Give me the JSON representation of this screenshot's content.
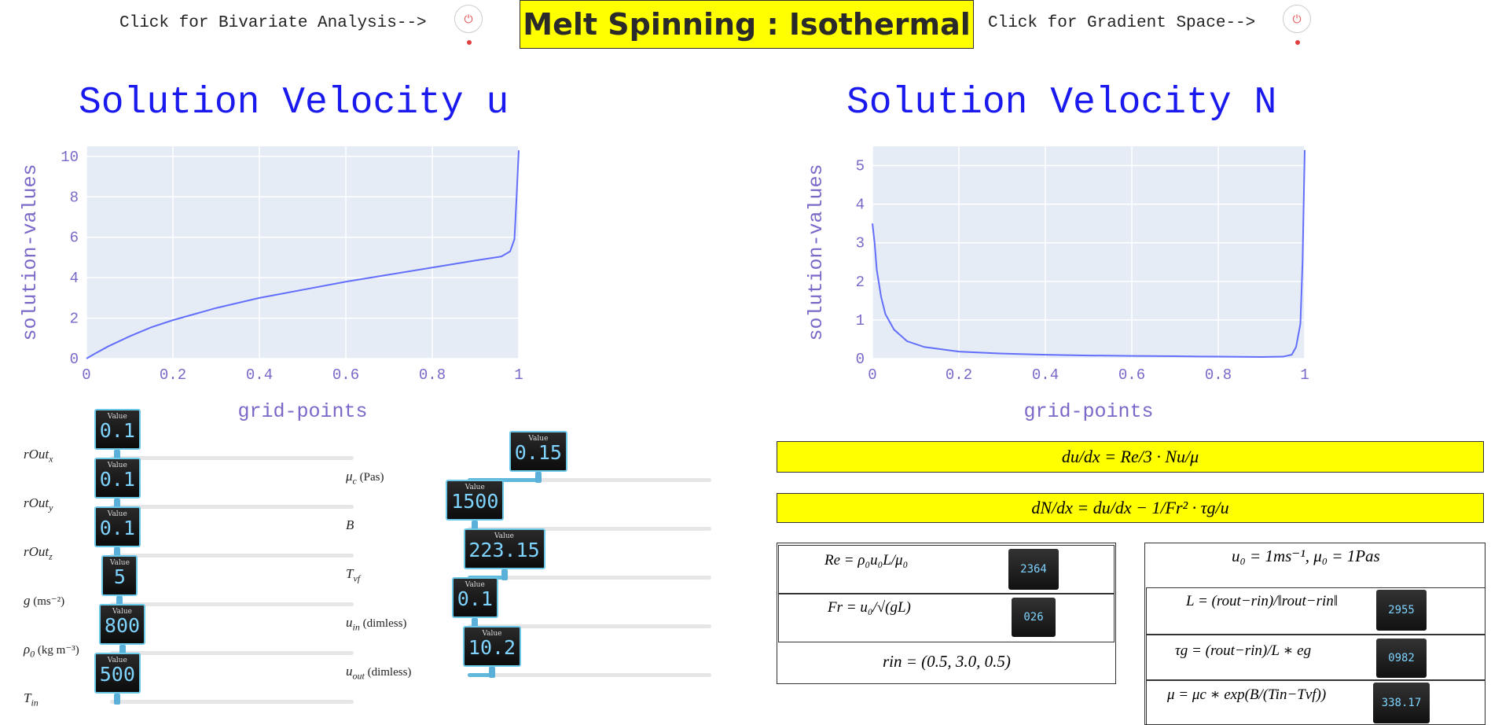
{
  "header": {
    "bivariate_label": "Click for Bivariate Analysis-->",
    "gradient_label": "Click for Gradient Space-->",
    "title": "Melt Spinning : Isothermal",
    "power_glyph": "⏻"
  },
  "charts": {
    "left": {
      "title": "Solution Velocity u",
      "xlabel": "grid-points",
      "ylabel": "solution-values",
      "xticks": [
        "0",
        "0.2",
        "0.4",
        "0.6",
        "0.8",
        "1"
      ],
      "yticks": [
        "0",
        "2",
        "4",
        "6",
        "8",
        "10"
      ]
    },
    "right": {
      "title": "Solution Velocity N",
      "xlabel": "grid-points",
      "ylabel": "solution-values",
      "xticks": [
        "0",
        "0.2",
        "0.4",
        "0.6",
        "0.8",
        "1"
      ],
      "yticks": [
        "0",
        "1",
        "2",
        "3",
        "4",
        "5"
      ]
    }
  },
  "chart_data": [
    {
      "type": "line",
      "title": "Solution Velocity u",
      "xlabel": "grid-points",
      "ylabel": "solution-values",
      "xlim": [
        0,
        1
      ],
      "ylim": [
        0,
        10.5
      ],
      "grid": true,
      "color": "#636efa",
      "x": [
        0,
        0.02,
        0.05,
        0.1,
        0.15,
        0.2,
        0.3,
        0.4,
        0.5,
        0.6,
        0.7,
        0.8,
        0.9,
        0.96,
        0.98,
        0.99,
        0.995,
        1.0
      ],
      "y": [
        0,
        0.25,
        0.6,
        1.1,
        1.55,
        1.9,
        2.5,
        3.0,
        3.4,
        3.8,
        4.15,
        4.5,
        4.85,
        5.05,
        5.3,
        5.9,
        8.0,
        10.3
      ]
    },
    {
      "type": "line",
      "title": "Solution Velocity N",
      "xlabel": "grid-points",
      "ylabel": "solution-values",
      "xlim": [
        0,
        1
      ],
      "ylim": [
        0,
        5.5
      ],
      "grid": true,
      "color": "#636efa",
      "x": [
        0,
        0.005,
        0.01,
        0.02,
        0.03,
        0.05,
        0.08,
        0.12,
        0.2,
        0.3,
        0.4,
        0.5,
        0.6,
        0.7,
        0.8,
        0.9,
        0.95,
        0.97,
        0.98,
        0.99,
        0.995,
        1.0
      ],
      "y": [
        3.5,
        3.0,
        2.3,
        1.6,
        1.15,
        0.75,
        0.45,
        0.3,
        0.18,
        0.13,
        0.1,
        0.08,
        0.07,
        0.06,
        0.05,
        0.04,
        0.05,
        0.1,
        0.3,
        0.9,
        2.5,
        5.4
      ]
    }
  ],
  "sliders_left": [
    {
      "label": "rOut",
      "sub": "x",
      "unit": "",
      "value": "0.1",
      "fraction": 0.03
    },
    {
      "label": "rOut",
      "sub": "y",
      "unit": "",
      "value": "0.1",
      "fraction": 0.03
    },
    {
      "label": "rOut",
      "sub": "z",
      "unit": "",
      "value": "0.1",
      "fraction": 0.03
    },
    {
      "label": "g",
      "sub": "",
      "unit": "(ms⁻²)",
      "value": "5",
      "fraction": 0.04
    },
    {
      "label": "ρ",
      "sub": "0",
      "unit": "(kg m⁻³)",
      "value": "800",
      "fraction": 0.05
    },
    {
      "label": "T",
      "sub": "in",
      "unit": "",
      "value": "500",
      "fraction": 0.03
    }
  ],
  "sliders_right": [
    {
      "label": "μ",
      "sub": "c",
      "unit": "(Pas)",
      "value": "0.15",
      "fraction": 0.29
    },
    {
      "label": "B",
      "sub": "",
      "unit": "",
      "value": "1500",
      "fraction": 0.03
    },
    {
      "label": "T",
      "sub": "vf",
      "unit": "",
      "value": "223.15",
      "fraction": 0.15
    },
    {
      "label": "u",
      "sub": "in",
      "unit": "(dimless)",
      "value": "0.1",
      "fraction": 0.03
    },
    {
      "label": "u",
      "sub": "out",
      "unit": "(dimless)",
      "value": "10.2",
      "fraction": 0.1
    }
  ],
  "value_caption": "Value",
  "equations": {
    "eq1": "du/dx = Re/3 · Nu/μ",
    "eq2": "dN/dx = du/dx − 1/Fr² · τg/u"
  },
  "panel_left": {
    "re_formula": "Re = ρ₀u₀L/μ₀",
    "re_value": "2364",
    "fr_formula": "Fr = u₀/√(gL)",
    "fr_value": "026",
    "rin_formula": "rin = (0.5, 3.0, 0.5)"
  },
  "panel_right": {
    "u0_formula": "u₀ = 1ms⁻¹, μ₀ = 1Pas",
    "L_formula": "L = (rout−rin)/‖rout−rin‖",
    "L_value": "2955",
    "tau_formula": "τg = (rout−rin)/L ∗ eg",
    "tau_value": "0982",
    "mu_formula": "μ = μc ∗ exp(B/(Tin−Tvf))",
    "mu_value": "338.17"
  }
}
